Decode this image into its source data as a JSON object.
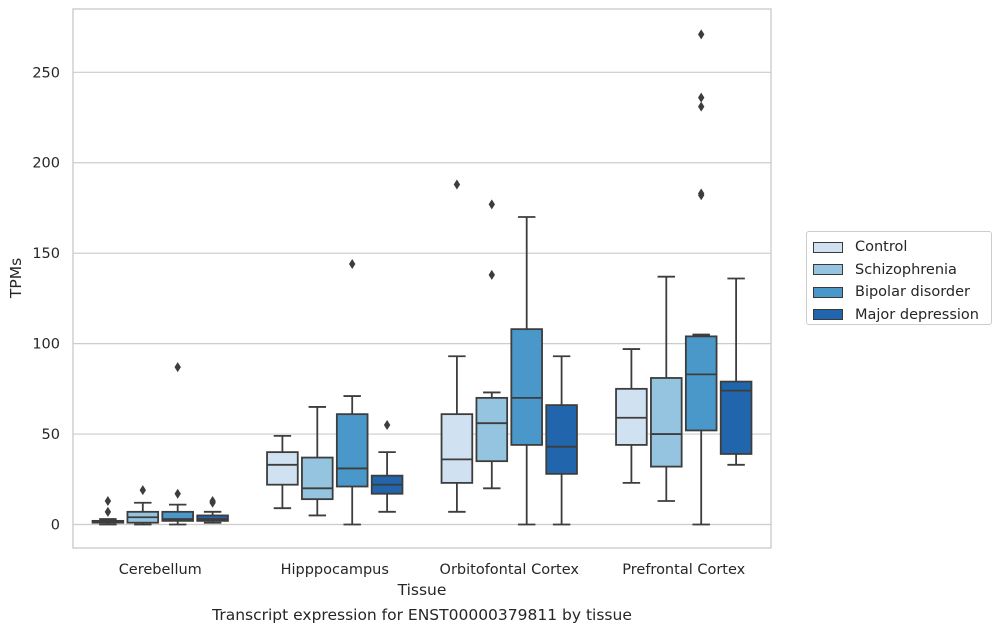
{
  "chart_data": {
    "type": "box",
    "title": "",
    "caption": "Transcript expression for ENST00000379811 by tissue",
    "xlabel": "Tissue",
    "ylabel": "TPMs",
    "ylim": [
      -13,
      285
    ],
    "yticks": [
      0,
      50,
      100,
      150,
      200,
      250
    ],
    "grid": "horizontal",
    "legend_position": "right",
    "categories": [
      "Cerebellum",
      "Hipppocampus",
      "Orbitofontal Cortex",
      "Prefrontal Cortex"
    ],
    "series": [
      {
        "name": "Control",
        "color": "#d0e1f2",
        "boxes": [
          {
            "whisker_low": 0,
            "q1": 1,
            "median": 1.5,
            "q3": 2,
            "whisker_high": 3,
            "outliers": [
              7,
              13
            ]
          },
          {
            "whisker_low": 9,
            "q1": 22,
            "median": 33,
            "q3": 40,
            "whisker_high": 49,
            "outliers": []
          },
          {
            "whisker_low": 7,
            "q1": 23,
            "median": 36,
            "q3": 61,
            "whisker_high": 93,
            "outliers": [
              188
            ]
          },
          {
            "whisker_low": 23,
            "q1": 44,
            "median": 59,
            "q3": 75,
            "whisker_high": 97,
            "outliers": []
          }
        ]
      },
      {
        "name": "Schizophrenia",
        "color": "#94c4df",
        "boxes": [
          {
            "whisker_low": 0,
            "q1": 1,
            "median": 4,
            "q3": 7,
            "whisker_high": 12,
            "outliers": [
              19
            ]
          },
          {
            "whisker_low": 5,
            "q1": 14,
            "median": 20,
            "q3": 37,
            "whisker_high": 65,
            "outliers": []
          },
          {
            "whisker_low": 20,
            "q1": 35,
            "median": 56,
            "q3": 70,
            "whisker_high": 73,
            "outliers": [
              138,
              177
            ]
          },
          {
            "whisker_low": 13,
            "q1": 32,
            "median": 50,
            "q3": 81,
            "whisker_high": 137,
            "outliers": []
          }
        ]
      },
      {
        "name": "Bipolar disorder",
        "color": "#4a98c9",
        "boxes": [
          {
            "whisker_low": 0,
            "q1": 2,
            "median": 3,
            "q3": 7,
            "whisker_high": 11,
            "outliers": [
              17,
              87
            ]
          },
          {
            "whisker_low": 0,
            "q1": 21,
            "median": 31,
            "q3": 61,
            "whisker_high": 71,
            "outliers": [
              144
            ]
          },
          {
            "whisker_low": 0,
            "q1": 44,
            "median": 70,
            "q3": 108,
            "whisker_high": 170,
            "outliers": []
          },
          {
            "whisker_low": 0,
            "q1": 52,
            "median": 83,
            "q3": 104,
            "whisker_high": 105,
            "outliers": [
              182,
              183,
              231,
              236,
              271
            ]
          }
        ]
      },
      {
        "name": "Major depression",
        "color": "#2166ac",
        "boxes": [
          {
            "whisker_low": 1,
            "q1": 2,
            "median": 3,
            "q3": 5,
            "whisker_high": 7,
            "outliers": [
              12,
              13
            ]
          },
          {
            "whisker_low": 7,
            "q1": 17,
            "median": 22,
            "q3": 27,
            "whisker_high": 40,
            "outliers": [
              55
            ]
          },
          {
            "whisker_low": 0,
            "q1": 28,
            "median": 43,
            "q3": 66,
            "whisker_high": 93,
            "outliers": []
          },
          {
            "whisker_low": 33,
            "q1": 39,
            "median": 74,
            "q3": 79,
            "whisker_high": 136,
            "outliers": []
          }
        ]
      }
    ]
  }
}
